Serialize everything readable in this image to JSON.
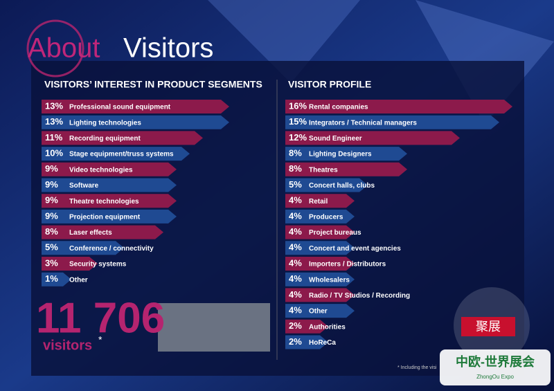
{
  "header": {
    "title_a": "About",
    "title_b": "Visitors"
  },
  "chart_data": [
    {
      "type": "bar",
      "title": "VISITORS’ INTEREST IN PRODUCT SEGMENTS",
      "categories": [
        "Professional sound equipment",
        "Lighting technologies",
        "Recording equipment",
        "Stage equipment/truss systems",
        "Video technologies",
        "Software",
        "Theatre technologies",
        "Projection equipment",
        "Laser effects",
        "Conference / connectivity",
        "Security systems",
        "Other"
      ],
      "values": [
        13,
        13,
        11,
        10,
        9,
        9,
        9,
        9,
        8,
        5,
        3,
        1
      ],
      "value_labels": [
        "13%",
        "13%",
        "11%",
        "10%",
        "9%",
        "9%",
        "9%",
        "9%",
        "8%",
        "5%",
        "3%",
        "1%"
      ],
      "colors": [
        "#8c1a4b",
        "#1f4a92"
      ]
    },
    {
      "type": "bar",
      "title": "VISITOR PROFILE",
      "categories": [
        "Rental companies",
        "Integrators / Technical managers",
        "Sound Engineer",
        "Lighting Designers",
        "Theatres",
        "Concert halls, clubs",
        "Retail",
        "Producers",
        "Project bureaus",
        "Concert and event agencies",
        "Importers / Distributors",
        "Wholesalers",
        "Radio / TV Studios / Recording",
        "Other",
        "Authorities",
        "HoReCa"
      ],
      "values": [
        16,
        15,
        12,
        8,
        8,
        5,
        4,
        4,
        4,
        4,
        4,
        4,
        4,
        4,
        2,
        2
      ],
      "value_labels": [
        "16%",
        "15%",
        "12%",
        "8%",
        "8%",
        "5%",
        "4%",
        "4%",
        "4%",
        "4%",
        "4%",
        "4%",
        "4%",
        "4%",
        "2%",
        "2%"
      ],
      "colors": [
        "#8c1a4b",
        "#1f4a92"
      ]
    }
  ],
  "visitors": {
    "count": "11 706",
    "label": "visitors",
    "mark": "*"
  },
  "footnote": "* Including the visi",
  "watermark": {
    "badge": "聚展",
    "brand": "中欧-世界展会",
    "brand_en": "ZhongOu Expo"
  }
}
